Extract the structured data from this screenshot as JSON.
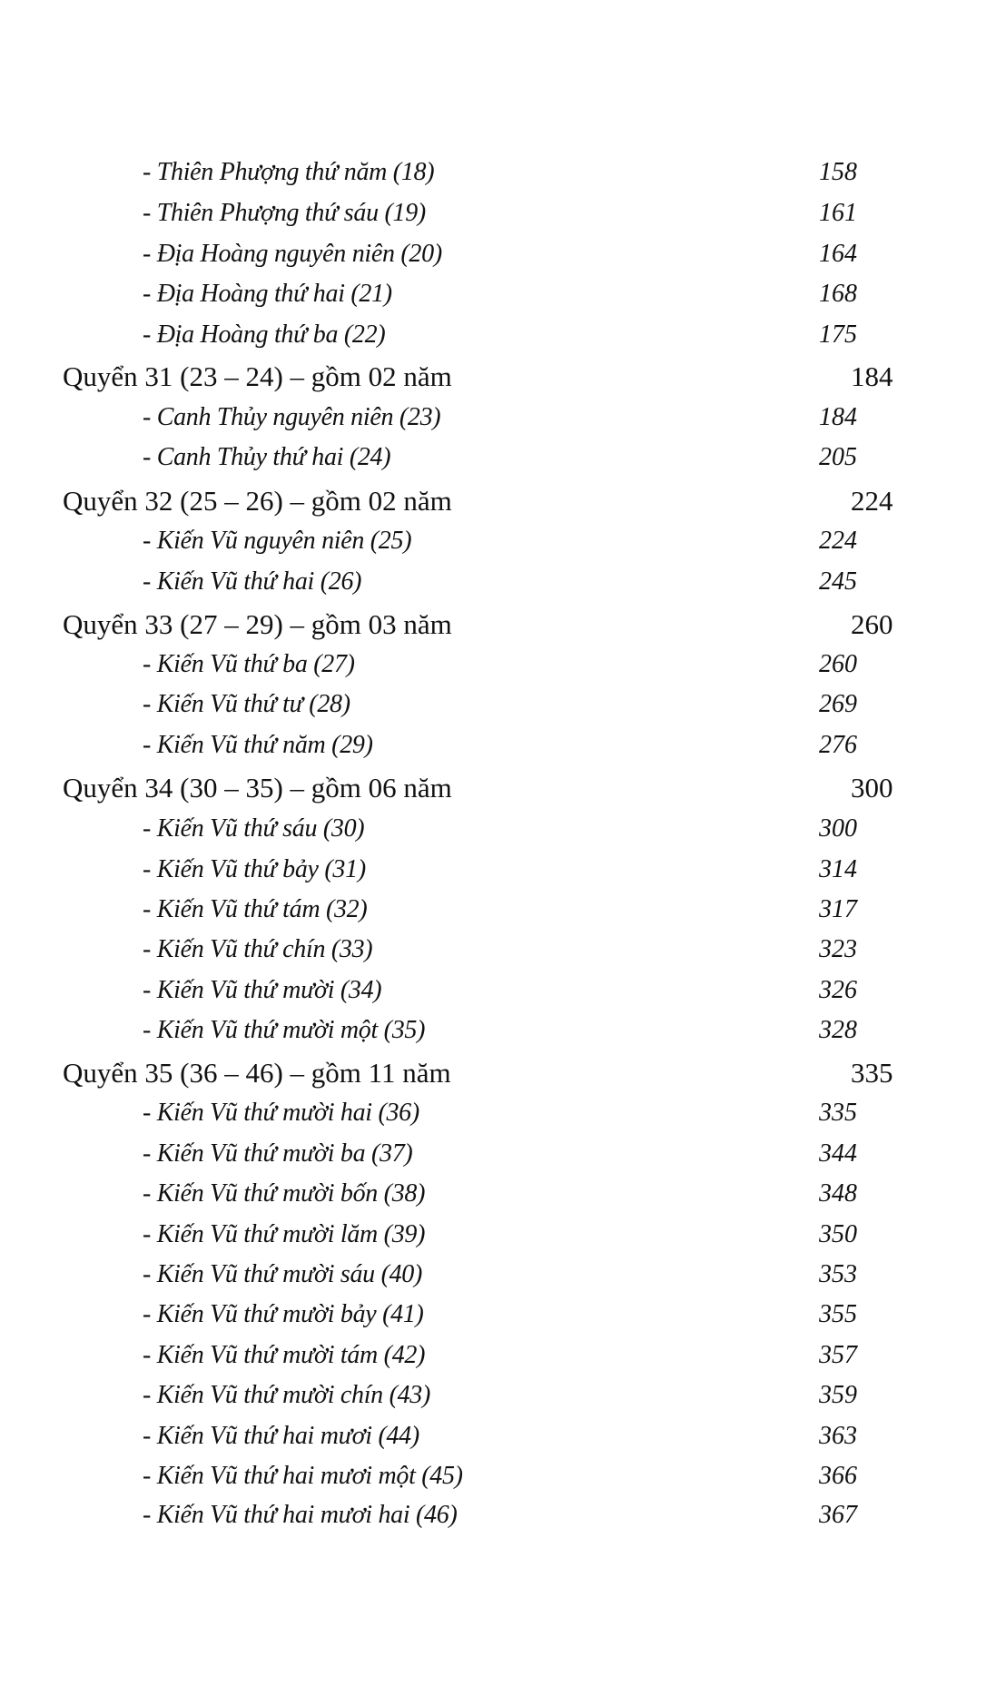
{
  "toc": [
    {
      "type": "sub",
      "label": "- Thiên Phượng thứ năm (18)",
      "page": "158"
    },
    {
      "type": "sub",
      "label": "- Thiên Phượng thứ sáu (19)",
      "page": "161"
    },
    {
      "type": "sub",
      "label": "- Địa Hoàng nguyên niên (20)",
      "page": "164"
    },
    {
      "type": "sub",
      "label": "- Địa Hoàng thứ hai (21)",
      "page": "168"
    },
    {
      "type": "sub",
      "label": "- Địa Hoàng thứ ba (22)",
      "page": "175"
    },
    {
      "type": "head",
      "label": "Quyển 31 (23 – 24) – gồm 02 năm",
      "page": "184"
    },
    {
      "type": "sub",
      "label": "- Canh Thủy nguyên niên (23)",
      "page": "184"
    },
    {
      "type": "sub",
      "label": "- Canh Thủy thứ hai (24)",
      "page": "205"
    },
    {
      "type": "head",
      "label": "Quyển 32 (25 – 26) – gồm 02 năm",
      "page": "224"
    },
    {
      "type": "sub",
      "label": "- Kiến Vũ nguyên niên (25)",
      "page": "224"
    },
    {
      "type": "sub",
      "label": "- Kiến Vũ thứ hai (26)",
      "page": "245"
    },
    {
      "type": "head",
      "label": "Quyển 33 (27 – 29) – gồm 03 năm",
      "page": "260"
    },
    {
      "type": "sub",
      "label": "- Kiến Vũ thứ ba (27)",
      "page": "260"
    },
    {
      "type": "sub",
      "label": "- Kiến Vũ thứ tư (28)",
      "page": "269"
    },
    {
      "type": "sub",
      "label": "- Kiến Vũ thứ năm (29)",
      "page": "276"
    },
    {
      "type": "head",
      "label": "Quyển 34 (30 – 35) – gồm 06 năm",
      "page": "300"
    },
    {
      "type": "sub",
      "label": "- Kiến Vũ thứ sáu (30)",
      "page": "300"
    },
    {
      "type": "sub",
      "label": "- Kiến Vũ thứ bảy (31)",
      "page": "314"
    },
    {
      "type": "sub",
      "label": "- Kiến Vũ thứ tám (32)",
      "page": "317"
    },
    {
      "type": "sub",
      "label": "- Kiến Vũ thứ chín (33)",
      "page": "323"
    },
    {
      "type": "sub",
      "label": "- Kiến Vũ thứ mười (34)",
      "page": "326"
    },
    {
      "type": "sub",
      "label": "- Kiến Vũ thứ mười một (35)",
      "page": "328"
    },
    {
      "type": "head",
      "label": "Quyển 35 (36 – 46) – gồm 11 năm",
      "page": "335"
    },
    {
      "type": "sub",
      "label": "- Kiến Vũ thứ mười hai (36)",
      "page": "335"
    },
    {
      "type": "sub",
      "label": "- Kiến Vũ thứ mười ba (37)",
      "page": "344"
    },
    {
      "type": "sub",
      "label": "- Kiến Vũ thứ mười bốn (38)",
      "page": "348"
    },
    {
      "type": "sub",
      "label": "- Kiến Vũ thứ mười lăm (39)",
      "page": "350"
    },
    {
      "type": "sub",
      "label": "- Kiến Vũ thứ mười sáu (40)",
      "page": "353"
    },
    {
      "type": "sub",
      "label": "- Kiến Vũ thứ mười bảy (41)",
      "page": "355"
    },
    {
      "type": "sub",
      "label": "- Kiến Vũ thứ mười tám (42)",
      "page": "357"
    },
    {
      "type": "sub",
      "label": "- Kiến Vũ thứ mười chín (43)",
      "page": "359"
    },
    {
      "type": "sub",
      "label": "- Kiến Vũ thứ hai mươi (44)",
      "page": "363"
    },
    {
      "type": "sub",
      "label": "- Kiến Vũ thứ hai mươi một (45)",
      "page": "366"
    },
    {
      "type": "sub",
      "label": "- Kiến Vũ thứ hai mươi hai (46)",
      "page": "367"
    }
  ]
}
